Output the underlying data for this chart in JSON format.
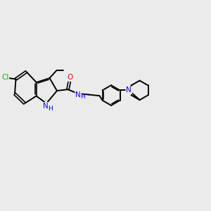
{
  "background_color": "#ebebeb",
  "bond_color": "#000000",
  "atom_colors": {
    "Cl": "#00bb00",
    "N": "#0000ff",
    "O": "#ff0000",
    "C": "#000000",
    "H": "#0000ff"
  },
  "line_width": 1.4,
  "lw_double": 1.2
}
